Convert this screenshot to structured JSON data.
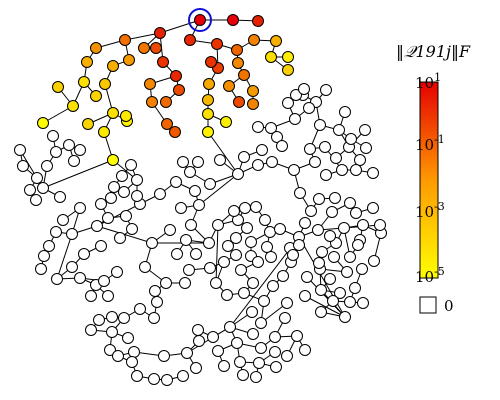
{
  "colorbar": {
    "title": "‖𝒬191j‖F",
    "ticks": [
      {
        "base": "10",
        "exp": "1"
      },
      {
        "base": "10",
        "exp": "-1"
      },
      {
        "base": "10",
        "exp": "-3"
      },
      {
        "base": "10",
        "exp": "-5"
      }
    ],
    "zero_label": "0",
    "colors": {
      "high": "#e8000b",
      "mid": "#ff8c00",
      "low": "#ffff00",
      "zero": "#ffffff"
    }
  },
  "graph": {
    "highlighted_node": 191,
    "highlight_color": "#1010d0"
  }
}
